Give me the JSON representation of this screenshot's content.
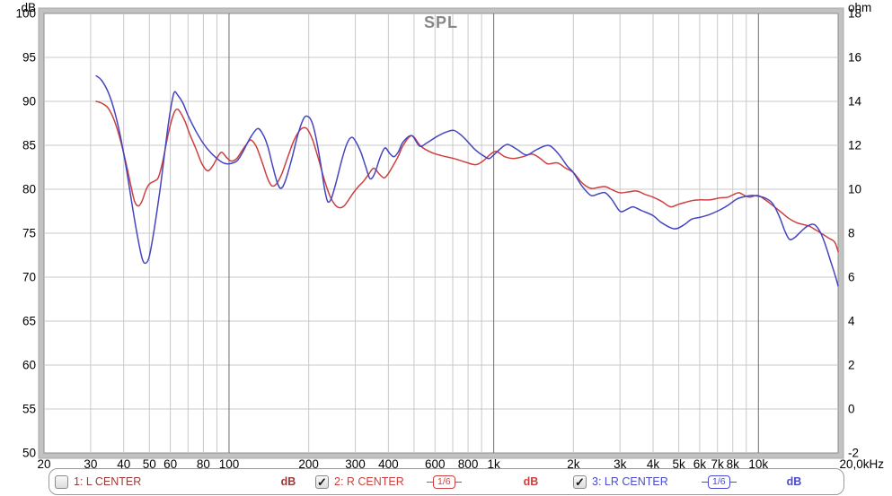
{
  "chart_data": {
    "type": "line",
    "title": "SPL",
    "x_axis": {
      "scale": "log",
      "min": 20,
      "max": 20000,
      "tick_labels": [
        [
          20,
          "20"
        ],
        [
          30,
          "30"
        ],
        [
          40,
          "40"
        ],
        [
          50,
          "50"
        ],
        [
          60,
          "60"
        ],
        [
          80,
          "80"
        ],
        [
          100,
          "100"
        ],
        [
          200,
          "200"
        ],
        [
          300,
          "300"
        ],
        [
          400,
          "400"
        ],
        [
          600,
          "600"
        ],
        [
          800,
          "800"
        ],
        [
          1000,
          "1k"
        ],
        [
          2000,
          "2k"
        ],
        [
          3000,
          "3k"
        ],
        [
          4000,
          "4k"
        ],
        [
          5000,
          "5k"
        ],
        [
          6000,
          "6k"
        ],
        [
          7000,
          "7k"
        ],
        [
          8000,
          "8k"
        ],
        [
          10000,
          "10k"
        ],
        [
          20000,
          "20,0kHz"
        ]
      ],
      "minor_gridlines": [
        30,
        40,
        50,
        60,
        70,
        80,
        90,
        200,
        300,
        400,
        500,
        600,
        700,
        800,
        900,
        2000,
        3000,
        4000,
        5000,
        6000,
        7000,
        8000,
        9000
      ],
      "major_gridlines": [
        100,
        1000,
        10000
      ]
    },
    "y_left": {
      "unit": "dB",
      "min": 50,
      "max": 100,
      "ticks": [
        100,
        95,
        90,
        85,
        80,
        75,
        70,
        65,
        60,
        55,
        50
      ]
    },
    "y_right": {
      "unit": "ohm",
      "min": -2,
      "max": 18,
      "ticks": [
        18,
        16,
        14,
        12,
        10,
        8,
        6,
        4,
        2,
        0,
        -2
      ]
    },
    "colors": {
      "grid_minor": "#c9c9c9",
      "grid_major": "#6e6e6e",
      "frame_band": "#c2c2c2",
      "frame_inner": "#8f8f8f",
      "frame_outer": "#aaaaaa",
      "title": "#878787",
      "axis_text": "#000000"
    },
    "series": [
      {
        "id": "r-center",
        "name": "2: R CENTER",
        "color": "#cc4040",
        "width": 1.5,
        "points": [
          [
            31.5,
            90.0
          ],
          [
            33,
            89.8
          ],
          [
            35,
            89.2
          ],
          [
            37,
            87.7
          ],
          [
            39,
            85.4
          ],
          [
            41,
            82.7
          ],
          [
            42.5,
            80.5
          ],
          [
            44,
            78.6
          ],
          [
            45.5,
            78.1
          ],
          [
            47,
            78.7
          ],
          [
            48.5,
            79.9
          ],
          [
            50,
            80.6
          ],
          [
            52,
            80.9
          ],
          [
            54,
            81.3
          ],
          [
            56,
            83.0
          ],
          [
            58,
            85.3
          ],
          [
            60,
            87.3
          ],
          [
            62,
            88.7
          ],
          [
            63.5,
            89.1
          ],
          [
            65,
            88.9
          ],
          [
            68,
            87.8
          ],
          [
            71,
            86.3
          ],
          [
            75,
            84.6
          ],
          [
            79,
            82.9
          ],
          [
            83,
            82.1
          ],
          [
            87,
            82.7
          ],
          [
            91,
            83.8
          ],
          [
            94,
            84.2
          ],
          [
            98,
            83.6
          ],
          [
            102,
            83.2
          ],
          [
            107,
            83.5
          ],
          [
            112,
            84.4
          ],
          [
            117,
            85.2
          ],
          [
            121,
            85.6
          ],
          [
            127,
            84.8
          ],
          [
            134,
            82.9
          ],
          [
            140,
            81.2
          ],
          [
            145,
            80.4
          ],
          [
            151,
            80.6
          ],
          [
            158,
            81.7
          ],
          [
            166,
            83.5
          ],
          [
            175,
            85.4
          ],
          [
            184,
            86.6
          ],
          [
            191,
            87.0
          ],
          [
            198,
            86.8
          ],
          [
            207,
            85.6
          ],
          [
            217,
            83.6
          ],
          [
            228,
            81.3
          ],
          [
            240,
            79.3
          ],
          [
            252,
            78.2
          ],
          [
            262,
            77.9
          ],
          [
            272,
            78.1
          ],
          [
            283,
            78.8
          ],
          [
            295,
            79.6
          ],
          [
            308,
            80.3
          ],
          [
            322,
            80.9
          ],
          [
            337,
            81.7
          ],
          [
            352,
            82.4
          ],
          [
            368,
            81.8
          ],
          [
            385,
            81.3
          ],
          [
            400,
            81.8
          ],
          [
            417,
            82.7
          ],
          [
            435,
            83.7
          ],
          [
            455,
            85.0
          ],
          [
            490,
            86.1
          ],
          [
            530,
            84.9
          ],
          [
            580,
            84.2
          ],
          [
            640,
            83.8
          ],
          [
            706,
            83.5
          ],
          [
            780,
            83.1
          ],
          [
            851,
            82.8
          ],
          [
            910,
            83.2
          ],
          [
            1010,
            84.3
          ],
          [
            1100,
            83.7
          ],
          [
            1187,
            83.5
          ],
          [
            1290,
            83.7
          ],
          [
            1395,
            84.0
          ],
          [
            1500,
            83.5
          ],
          [
            1598,
            82.9
          ],
          [
            1740,
            83.0
          ],
          [
            1870,
            82.4
          ],
          [
            2000,
            81.9
          ],
          [
            2160,
            80.7
          ],
          [
            2325,
            80.1
          ],
          [
            2480,
            80.2
          ],
          [
            2640,
            80.3
          ],
          [
            2820,
            79.9
          ],
          [
            3000,
            79.6
          ],
          [
            3240,
            79.7
          ],
          [
            3475,
            79.8
          ],
          [
            3740,
            79.4
          ],
          [
            4000,
            79.1
          ],
          [
            4320,
            78.6
          ],
          [
            4655,
            78.0
          ],
          [
            5000,
            78.3
          ],
          [
            5610,
            78.7
          ],
          [
            6000,
            78.8
          ],
          [
            6560,
            78.8
          ],
          [
            7100,
            79.0
          ],
          [
            7670,
            79.1
          ],
          [
            8050,
            79.4
          ],
          [
            8440,
            79.6
          ],
          [
            8850,
            79.3
          ],
          [
            9270,
            79.1
          ],
          [
            9930,
            79.3
          ],
          [
            10500,
            78.9
          ],
          [
            11170,
            78.3
          ],
          [
            12180,
            77.4
          ],
          [
            13000,
            76.7
          ],
          [
            13920,
            76.2
          ],
          [
            14700,
            76.0
          ],
          [
            15580,
            75.8
          ],
          [
            16400,
            75.4
          ],
          [
            17250,
            75.0
          ],
          [
            18300,
            74.5
          ],
          [
            19400,
            74.0
          ],
          [
            20000,
            72.9
          ]
        ]
      },
      {
        "id": "lr-center",
        "name": "3: LR CENTER",
        "color": "#4545c0",
        "width": 1.5,
        "points": [
          [
            31.5,
            92.9
          ],
          [
            33,
            92.4
          ],
          [
            35,
            91.0
          ],
          [
            37,
            88.8
          ],
          [
            39,
            85.8
          ],
          [
            41,
            82.2
          ],
          [
            43,
            78.3
          ],
          [
            45,
            74.8
          ],
          [
            47,
            72.1
          ],
          [
            48.5,
            71.6
          ],
          [
            50,
            72.4
          ],
          [
            52,
            75.2
          ],
          [
            55,
            80.2
          ],
          [
            58,
            85.8
          ],
          [
            60,
            88.9
          ],
          [
            62,
            91.0
          ],
          [
            64,
            90.7
          ],
          [
            67,
            89.8
          ],
          [
            70,
            88.4
          ],
          [
            75,
            86.6
          ],
          [
            80,
            85.2
          ],
          [
            85,
            84.2
          ],
          [
            90,
            83.5
          ],
          [
            95,
            83.0
          ],
          [
            100,
            82.9
          ],
          [
            107,
            83.2
          ],
          [
            113,
            84.3
          ],
          [
            120,
            85.8
          ],
          [
            128,
            86.9
          ],
          [
            134,
            86.3
          ],
          [
            140,
            84.9
          ],
          [
            146,
            82.7
          ],
          [
            152,
            80.8
          ],
          [
            157,
            80.1
          ],
          [
            163,
            80.9
          ],
          [
            172,
            83.3
          ],
          [
            182,
            86.2
          ],
          [
            191,
            88.0
          ],
          [
            198,
            88.3
          ],
          [
            206,
            87.6
          ],
          [
            214,
            85.6
          ],
          [
            223,
            82.5
          ],
          [
            230,
            79.9
          ],
          [
            236,
            78.6
          ],
          [
            243,
            78.9
          ],
          [
            253,
            80.6
          ],
          [
            266,
            83.2
          ],
          [
            279,
            85.2
          ],
          [
            290,
            85.9
          ],
          [
            300,
            85.5
          ],
          [
            315,
            84.2
          ],
          [
            328,
            82.6
          ],
          [
            341,
            81.2
          ],
          [
            355,
            81.8
          ],
          [
            372,
            83.6
          ],
          [
            388,
            84.7
          ],
          [
            404,
            84.1
          ],
          [
            420,
            83.7
          ],
          [
            437,
            84.3
          ],
          [
            455,
            85.4
          ],
          [
            490,
            86.1
          ],
          [
            525,
            84.9
          ],
          [
            560,
            85.3
          ],
          [
            610,
            86.0
          ],
          [
            660,
            86.5
          ],
          [
            706,
            86.7
          ],
          [
            750,
            86.2
          ],
          [
            793,
            85.5
          ],
          [
            851,
            84.5
          ],
          [
            925,
            83.7
          ],
          [
            962,
            83.5
          ],
          [
            1000,
            83.9
          ],
          [
            1060,
            84.6
          ],
          [
            1128,
            85.1
          ],
          [
            1230,
            84.5
          ],
          [
            1330,
            83.9
          ],
          [
            1450,
            84.5
          ],
          [
            1600,
            85.0
          ],
          [
            1700,
            84.5
          ],
          [
            1800,
            83.6
          ],
          [
            1900,
            82.6
          ],
          [
            2000,
            81.9
          ],
          [
            2150,
            80.4
          ],
          [
            2330,
            79.3
          ],
          [
            2500,
            79.5
          ],
          [
            2640,
            79.6
          ],
          [
            2800,
            78.8
          ],
          [
            3000,
            77.5
          ],
          [
            3180,
            77.7
          ],
          [
            3360,
            78.0
          ],
          [
            3600,
            77.6
          ],
          [
            4000,
            77.0
          ],
          [
            4300,
            76.2
          ],
          [
            4800,
            75.5
          ],
          [
            5200,
            75.9
          ],
          [
            5600,
            76.6
          ],
          [
            6000,
            76.8
          ],
          [
            6500,
            77.1
          ],
          [
            7100,
            77.6
          ],
          [
            7700,
            78.2
          ],
          [
            8300,
            78.9
          ],
          [
            9000,
            79.2
          ],
          [
            9500,
            79.3
          ],
          [
            10000,
            79.2
          ],
          [
            10600,
            79.0
          ],
          [
            11300,
            78.4
          ],
          [
            12000,
            76.9
          ],
          [
            12600,
            75.2
          ],
          [
            13100,
            74.3
          ],
          [
            13700,
            74.5
          ],
          [
            14500,
            75.2
          ],
          [
            15300,
            75.8
          ],
          [
            16200,
            76.0
          ],
          [
            17000,
            75.3
          ],
          [
            17800,
            73.9
          ],
          [
            18700,
            71.9
          ],
          [
            19400,
            70.4
          ],
          [
            20000,
            69.0
          ]
        ]
      }
    ]
  },
  "legend": {
    "items": [
      {
        "label": "1: L CENTER",
        "checked": false,
        "smoothing": "",
        "unit": "dB",
        "color": "#993a3a"
      },
      {
        "label": "2: R CENTER",
        "checked": true,
        "smoothing": "1/6",
        "unit": "dB",
        "color": "#cc4040"
      },
      {
        "label": "3: LR CENTER",
        "checked": true,
        "smoothing": "1/6",
        "unit": "dB",
        "color": "#4a4ace"
      }
    ]
  },
  "icons": {
    "check": "✓"
  }
}
